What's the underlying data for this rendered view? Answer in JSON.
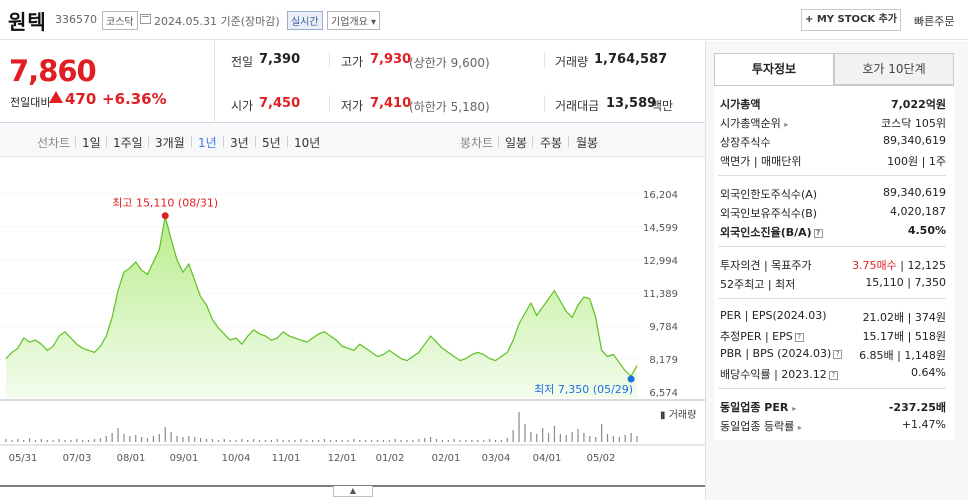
{
  "header": {
    "name": "원텍",
    "code": "336570",
    "market": "코스닥",
    "date_text": "2024.05.31  기준(장마감)",
    "realtime": "실시간",
    "company_info": "기업개요 ▾",
    "mystock": "+ MY STOCK 추가",
    "quick_order": "빠른주문"
  },
  "price": {
    "current": "7,860",
    "prev_label": "전일대비",
    "change": "470",
    "change_pct": "+6.36%"
  },
  "quotes": {
    "prev_label": "전일",
    "prev_val": "7,390",
    "high_label": "고가",
    "high_val": "7,930",
    "upper_text": "(상한가 9,600)",
    "volume_label": "거래량",
    "volume_val": "1,764,587",
    "open_label": "시가",
    "open_val": "7,450",
    "low_label": "저가",
    "low_val": "7,410",
    "lower_text": "(하한가 5,180)",
    "amount_label": "거래대금",
    "amount_val": "13,589",
    "amount_unit": "백만"
  },
  "tabs": {
    "line_chart": "선차트",
    "periods": [
      "1일",
      "1주일",
      "3개월",
      "1년",
      "3년",
      "5년",
      "10년"
    ],
    "active_period": "1년",
    "candle_chart": "봉차트",
    "candle_periods": [
      "일봉",
      "주봉",
      "월봉"
    ]
  },
  "chart_data": {
    "type": "area",
    "y_ticks": [
      "16,204",
      "14,599",
      "12,994",
      "11,389",
      "9,784",
      "8,179",
      "6,574"
    ],
    "ylim": [
      6574,
      16204
    ],
    "x_ticks": [
      "05/31",
      "07/03",
      "08/01",
      "09/01",
      "10/04",
      "11/01",
      "12/01",
      "01/02",
      "02/01",
      "03/04",
      "04/01",
      "05/02"
    ],
    "max_label": "최고 15,110 (08/31)",
    "min_label": "최저 7,350 (05/29)",
    "volume_label": "거래량",
    "series": [
      {
        "values": [
          8200,
          8500,
          8700,
          9200,
          9000,
          9100,
          8900,
          8600,
          8800,
          9300,
          9500,
          9200,
          8900,
          8700,
          8600,
          8500,
          8800,
          9300,
          10200,
          11500,
          12400,
          12600,
          12900,
          12500,
          12300,
          12900,
          13500,
          15100,
          14000,
          13000,
          12400,
          12800,
          12000,
          11200,
          10800,
          10100,
          9700,
          9400,
          9100,
          9200,
          8900,
          9300,
          9600,
          9400,
          9300,
          9100,
          9200,
          9500,
          9300,
          9200,
          9100,
          9000,
          9200,
          9400,
          9500,
          9300,
          9100,
          8800,
          8700,
          8600,
          8900,
          8700,
          8500,
          8300,
          8400,
          8600,
          8400,
          8200,
          8100,
          8300,
          8500,
          8900,
          9300,
          9000,
          8700,
          8500,
          8300,
          8100,
          8200,
          8400,
          8500,
          8400,
          8200,
          8100,
          8300,
          8500,
          9100,
          9900,
          10400,
          10900,
          10300,
          10700,
          11100,
          11500,
          11000,
          10500,
          10200,
          10800,
          11200,
          11100,
          10200,
          8600,
          8300,
          8400,
          8000,
          7600,
          7350,
          7860
        ]
      }
    ],
    "volumes": [
      3,
      2,
      3,
      2,
      4,
      2,
      3,
      2,
      2,
      3,
      2,
      2,
      3,
      2,
      2,
      3,
      4,
      6,
      9,
      14,
      8,
      6,
      7,
      5,
      4,
      6,
      8,
      15,
      10,
      6,
      5,
      6,
      5,
      4,
      3,
      3,
      2,
      3,
      2,
      2,
      3,
      2,
      3,
      2,
      2,
      2,
      3,
      2,
      2,
      2,
      3,
      2,
      2,
      2,
      3,
      2,
      2,
      2,
      2,
      3,
      2,
      2,
      2,
      2,
      2,
      2,
      3,
      2,
      2,
      2,
      3,
      4,
      5,
      3,
      2,
      2,
      3,
      2,
      2,
      2,
      2,
      2,
      3,
      2,
      2,
      4,
      12,
      30,
      18,
      10,
      8,
      14,
      9,
      16,
      8,
      7,
      10,
      13,
      9,
      6,
      5,
      18,
      8,
      6,
      5,
      7,
      9,
      6
    ]
  },
  "right_panel": {
    "tab_invest": "투자정보",
    "tab_hoga": "호가 10단계",
    "rows": [
      {
        "label": "시가총액",
        "value": "7,022억원"
      },
      {
        "label": "시가총액순위",
        "value": "코스닥 105위"
      },
      {
        "label": "상장주식수",
        "value": "89,340,619"
      },
      {
        "label": "액면가 | 매매단위",
        "value": "100원 | 1주"
      },
      {
        "label": "외국인한도주식수(A)",
        "value": "89,340,619"
      },
      {
        "label": "외국인보유주식수(B)",
        "value": "4,020,187"
      },
      {
        "label": "외국인소진율(B/A)",
        "value": "4.50%"
      },
      {
        "label": "투자의견 | 목표주가",
        "value_a": "3.75매수",
        "value_b": "12,125"
      },
      {
        "label": "52주최고 | 최저",
        "value": "15,110 | 7,350"
      },
      {
        "label": "PER | EPS(2024.03)",
        "value": "21.02배 | 374원"
      },
      {
        "label": "추정PER | EPS",
        "value": "15.17배 | 518원"
      },
      {
        "label": "PBR | BPS (2024.03)",
        "value": "6.85배 | 1,148원"
      },
      {
        "label": "배당수익률 | 2023.12",
        "value": "0.64%"
      },
      {
        "label": "동일업종 PER",
        "value": "-237.25배"
      },
      {
        "label": "동일업종 등락률",
        "value": "+1.47%"
      }
    ]
  },
  "colors": {
    "up": "#e01e23",
    "accent": "#3b7de9",
    "chart_line": "#5fc026",
    "chart_fill_top": "#b9ed8c"
  }
}
